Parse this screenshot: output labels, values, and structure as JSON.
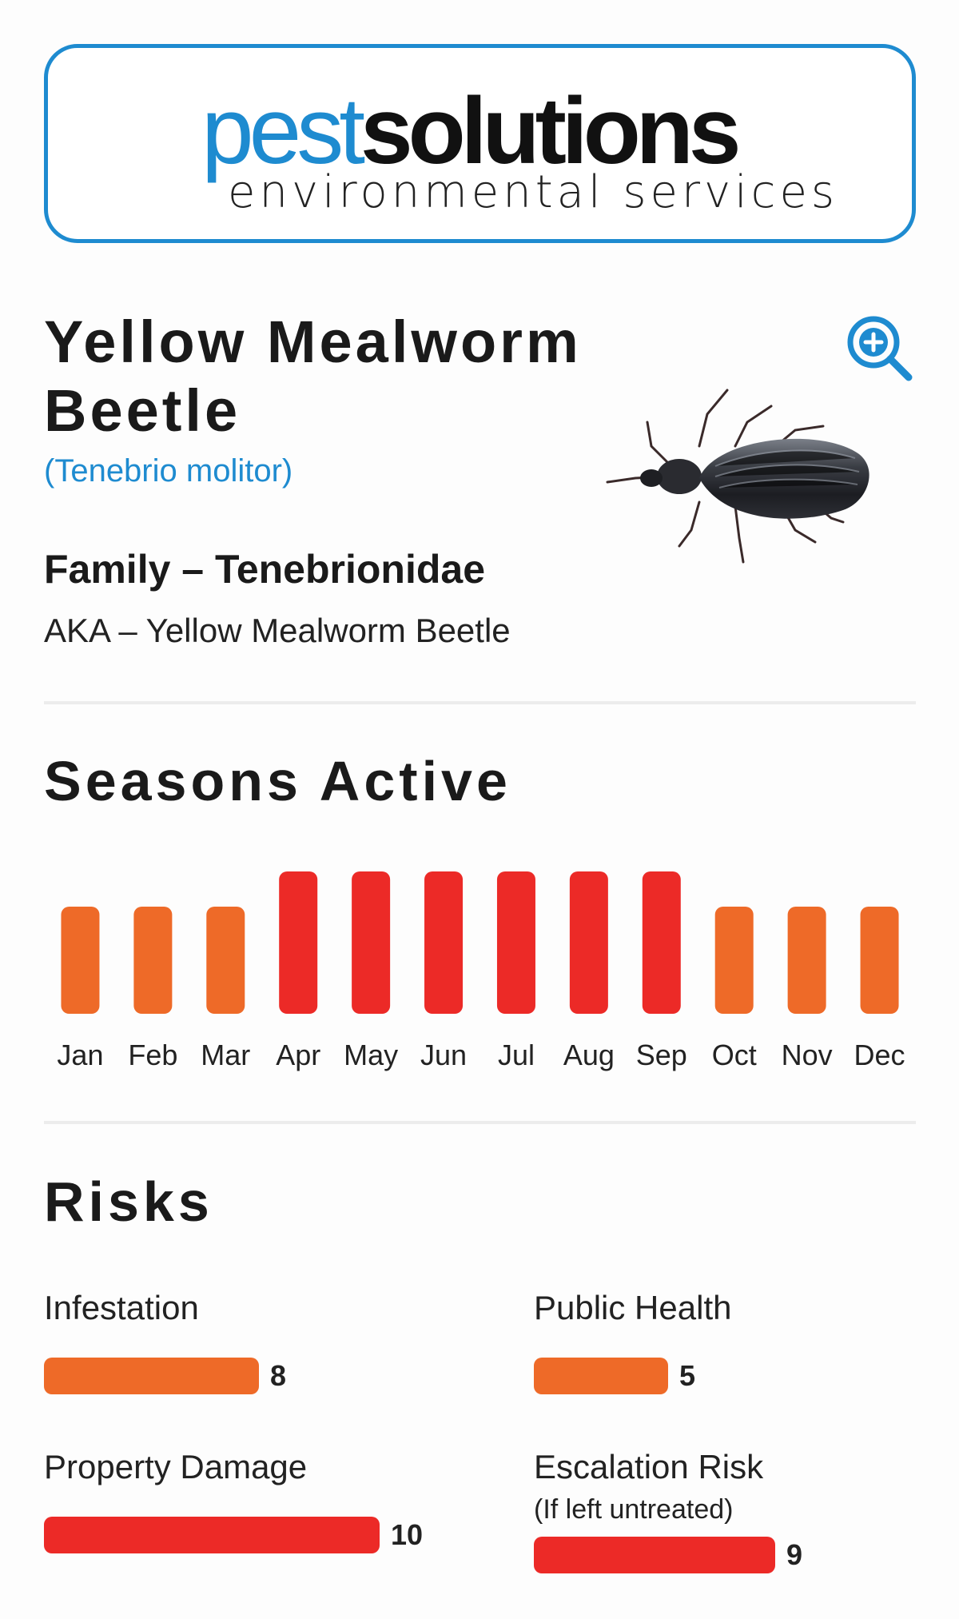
{
  "brand": {
    "name_part1": "pest",
    "name_part2": "solutions",
    "tagline": "environmental services"
  },
  "pest": {
    "title": "Yellow Mealworm Beetle",
    "scientific_name": "(Tenebrio molitor)",
    "family": "Family – Tenebrionidae",
    "aka": "AKA – Yellow Mealworm Beetle"
  },
  "zoom_icon": "zoom-in-icon",
  "seasons": {
    "title": "Seasons Active",
    "months": [
      {
        "label": "Jan",
        "level": "medium"
      },
      {
        "label": "Feb",
        "level": "medium"
      },
      {
        "label": "Mar",
        "level": "medium"
      },
      {
        "label": "Apr",
        "level": "high"
      },
      {
        "label": "May",
        "level": "high"
      },
      {
        "label": "Jun",
        "level": "high"
      },
      {
        "label": "Jul",
        "level": "high"
      },
      {
        "label": "Aug",
        "level": "high"
      },
      {
        "label": "Sep",
        "level": "high"
      },
      {
        "label": "Oct",
        "level": "medium"
      },
      {
        "label": "Nov",
        "level": "medium"
      },
      {
        "label": "Dec",
        "level": "medium"
      }
    ],
    "colors": {
      "medium": "#ee6a28",
      "high": "#ec2a27"
    }
  },
  "risks": {
    "title": "Risks",
    "max": 10,
    "items": [
      {
        "label": "Infestation",
        "sublabel": "",
        "value": 8,
        "color": "#ee6a28"
      },
      {
        "label": "Public Health",
        "sublabel": "",
        "value": 5,
        "color": "#ee6a28"
      },
      {
        "label": "Property Damage",
        "sublabel": "",
        "value": 10,
        "color": "#ec2a27"
      },
      {
        "label": "Escalation Risk",
        "sublabel": "(If left untreated)",
        "value": 9,
        "color": "#ec2a27"
      }
    ]
  }
}
